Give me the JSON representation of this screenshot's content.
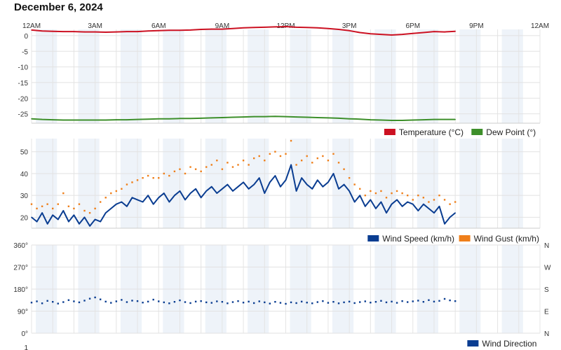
{
  "page": {
    "title": "December 6, 2024"
  },
  "time_axis": {
    "ticks": [
      "12AM",
      "3AM",
      "6AM",
      "9AM",
      "12PM",
      "3PM",
      "6PM",
      "9PM",
      "12AM"
    ],
    "range_hours": [
      0,
      24
    ]
  },
  "chart_data": [
    {
      "type": "line",
      "title": "",
      "ylim": [
        -28,
        2
      ],
      "y_ticks": [
        "0",
        "-5",
        "-10",
        "-15",
        "-20",
        "-25"
      ],
      "y_tick_values": [
        0,
        -5,
        -10,
        -15,
        -20,
        -25
      ],
      "series": [
        {
          "name": "Temperature (°C)",
          "color": "#cc1122",
          "style": "line",
          "x": [
            0,
            0.5,
            1,
            1.5,
            2,
            2.5,
            3,
            3.5,
            4,
            4.5,
            5,
            5.5,
            6,
            6.5,
            7,
            7.5,
            8,
            8.5,
            9,
            9.5,
            10,
            10.5,
            11,
            11.5,
            12,
            12.5,
            13,
            13.5,
            14,
            14.5,
            15,
            15.5,
            16,
            16.5,
            17,
            17.5,
            18,
            18.5,
            19,
            19.5,
            20
          ],
          "y": [
            1.8,
            1.5,
            1.4,
            1.3,
            1.3,
            1.2,
            1.2,
            1.1,
            1.2,
            1.3,
            1.3,
            1.5,
            1.6,
            1.7,
            1.7,
            1.8,
            2.0,
            2.1,
            2.1,
            2.3,
            2.5,
            2.6,
            2.7,
            2.8,
            2.9,
            2.7,
            2.6,
            2.5,
            2.3,
            2.0,
            1.6,
            1.0,
            0.6,
            0.4,
            0.2,
            0.4,
            0.7,
            1.0,
            1.3,
            1.2,
            1.4
          ]
        },
        {
          "name": "Dew Point (°)",
          "color": "#3d8f2a",
          "style": "line",
          "x": [
            0,
            0.5,
            1,
            1.5,
            2,
            2.5,
            3,
            3.5,
            4,
            4.5,
            5,
            5.5,
            6,
            6.5,
            7,
            7.5,
            8,
            8.5,
            9,
            9.5,
            10,
            10.5,
            11,
            11.5,
            12,
            12.5,
            13,
            13.5,
            14,
            14.5,
            15,
            15.5,
            16,
            16.5,
            17,
            17.5,
            18,
            18.5,
            19,
            19.5,
            20
          ],
          "y": [
            -26.6,
            -26.8,
            -26.9,
            -27.0,
            -27.0,
            -27.0,
            -27.0,
            -27.0,
            -26.9,
            -26.9,
            -26.8,
            -26.7,
            -26.6,
            -26.6,
            -26.5,
            -26.5,
            -26.4,
            -26.3,
            -26.2,
            -26.1,
            -26.0,
            -25.9,
            -25.9,
            -25.8,
            -25.9,
            -26.0,
            -26.1,
            -26.2,
            -26.3,
            -26.4,
            -26.6,
            -26.7,
            -26.9,
            -27.0,
            -27.1,
            -27.1,
            -27.0,
            -26.9,
            -26.8,
            -26.8,
            -26.8
          ]
        }
      ]
    },
    {
      "type": "line",
      "title": "",
      "ylim": [
        15,
        56
      ],
      "y_ticks": [
        "50",
        "40",
        "30",
        "20"
      ],
      "y_tick_values": [
        50,
        40,
        30,
        20
      ],
      "series": [
        {
          "name": "Wind Speed (km/h)",
          "color": "#0a3d91",
          "style": "line",
          "x": [
            0,
            0.25,
            0.5,
            0.75,
            1,
            1.25,
            1.5,
            1.75,
            2,
            2.25,
            2.5,
            2.75,
            3,
            3.25,
            3.5,
            3.75,
            4,
            4.25,
            4.5,
            4.75,
            5,
            5.25,
            5.5,
            5.75,
            6,
            6.25,
            6.5,
            6.75,
            7,
            7.25,
            7.5,
            7.75,
            8,
            8.25,
            8.5,
            8.75,
            9,
            9.25,
            9.5,
            9.75,
            10,
            10.25,
            10.5,
            10.75,
            11,
            11.25,
            11.5,
            11.75,
            12,
            12.25,
            12.5,
            12.75,
            13,
            13.25,
            13.5,
            13.75,
            14,
            14.25,
            14.5,
            14.75,
            15,
            15.25,
            15.5,
            15.75,
            16,
            16.25,
            16.5,
            16.75,
            17,
            17.25,
            17.5,
            17.75,
            18,
            18.25,
            18.5,
            18.75,
            19,
            19.25,
            19.5,
            19.75,
            20
          ],
          "y": [
            20,
            18,
            22,
            17,
            21,
            19,
            23,
            18,
            21,
            17,
            20,
            16,
            19,
            18,
            22,
            24,
            26,
            27,
            25,
            29,
            28,
            27,
            30,
            26,
            29,
            31,
            27,
            30,
            32,
            28,
            31,
            33,
            29,
            32,
            34,
            31,
            33,
            35,
            32,
            34,
            36,
            33,
            35,
            38,
            31,
            36,
            39,
            34,
            37,
            44,
            32,
            38,
            35,
            33,
            37,
            34,
            36,
            40,
            33,
            35,
            32,
            27,
            30,
            25,
            28,
            24,
            27,
            22,
            26,
            28,
            25,
            27,
            26,
            23,
            26,
            24,
            22,
            25,
            17,
            20,
            22
          ]
        },
        {
          "name": "Wind Gust (km/h)",
          "color": "#ef7f1a",
          "style": "dots",
          "x": [
            0,
            0.25,
            0.5,
            0.75,
            1,
            1.25,
            1.5,
            1.75,
            2,
            2.25,
            2.5,
            2.75,
            3,
            3.25,
            3.5,
            3.75,
            4,
            4.25,
            4.5,
            4.75,
            5,
            5.25,
            5.5,
            5.75,
            6,
            6.25,
            6.5,
            6.75,
            7,
            7.25,
            7.5,
            7.75,
            8,
            8.25,
            8.5,
            8.75,
            9,
            9.25,
            9.5,
            9.75,
            10,
            10.25,
            10.5,
            10.75,
            11,
            11.25,
            11.5,
            11.75,
            12,
            12.25,
            12.5,
            12.75,
            13,
            13.25,
            13.5,
            13.75,
            14,
            14.25,
            14.5,
            14.75,
            15,
            15.25,
            15.5,
            15.75,
            16,
            16.25,
            16.5,
            16.75,
            17,
            17.25,
            17.5,
            17.75,
            18,
            18.25,
            18.5,
            18.75,
            19,
            19.25,
            19.5,
            19.75,
            20
          ],
          "y": [
            26,
            24,
            25,
            26,
            24,
            26,
            31,
            25,
            24,
            26,
            23,
            22,
            24,
            27,
            29,
            31,
            32,
            33,
            35,
            36,
            37,
            38,
            39,
            38,
            38,
            40,
            39,
            41,
            42,
            40,
            43,
            42,
            41,
            43,
            44,
            46,
            42,
            45,
            43,
            44,
            46,
            44,
            47,
            48,
            46,
            49,
            50,
            48,
            49,
            55,
            44,
            46,
            48,
            45,
            47,
            48,
            46,
            49,
            45,
            42,
            38,
            35,
            33,
            30,
            32,
            31,
            32,
            29,
            31,
            32,
            31,
            30,
            28,
            30,
            29,
            27,
            28,
            30,
            28,
            26,
            27
          ]
        }
      ]
    },
    {
      "type": "scatter",
      "title": "",
      "ylim": [
        0,
        360
      ],
      "y_ticks": [
        "360°",
        "270°",
        "180°",
        "90°",
        "0°"
      ],
      "y_tick_values": [
        360,
        270,
        180,
        90,
        0
      ],
      "right_ticks": [
        "N",
        "W",
        "S",
        "E",
        "N"
      ],
      "series": [
        {
          "name": "Wind Direction",
          "color": "#0a3d91",
          "style": "dots",
          "x": [
            0,
            0.25,
            0.5,
            0.75,
            1,
            1.25,
            1.5,
            1.75,
            2,
            2.25,
            2.5,
            2.75,
            3,
            3.25,
            3.5,
            3.75,
            4,
            4.25,
            4.5,
            4.75,
            5,
            5.25,
            5.5,
            5.75,
            6,
            6.25,
            6.5,
            6.75,
            7,
            7.25,
            7.5,
            7.75,
            8,
            8.25,
            8.5,
            8.75,
            9,
            9.25,
            9.5,
            9.75,
            10,
            10.25,
            10.5,
            10.75,
            11,
            11.25,
            11.5,
            11.75,
            12,
            12.25,
            12.5,
            12.75,
            13,
            13.25,
            13.5,
            13.75,
            14,
            14.25,
            14.5,
            14.75,
            15,
            15.25,
            15.5,
            15.75,
            16,
            16.25,
            16.5,
            16.75,
            17,
            17.25,
            17.5,
            17.75,
            18,
            18.25,
            18.5,
            18.75,
            19,
            19.25,
            19.5,
            19.75,
            20
          ],
          "y": [
            125,
            130,
            122,
            132,
            128,
            121,
            127,
            135,
            130,
            126,
            133,
            141,
            146,
            138,
            129,
            124,
            130,
            136,
            127,
            133,
            131,
            125,
            129,
            137,
            130,
            126,
            122,
            128,
            134,
            127,
            123,
            129,
            131,
            126,
            124,
            130,
            128,
            122,
            127,
            131,
            125,
            129,
            123,
            130,
            126,
            121,
            128,
            124,
            120,
            126,
            123,
            129,
            125,
            122,
            127,
            131,
            124,
            128,
            122,
            126,
            129,
            123,
            127,
            130,
            125,
            128,
            132,
            126,
            129,
            124,
            131,
            127,
            130,
            133,
            128,
            135,
            129,
            132,
            140,
            134,
            131
          ]
        }
      ]
    }
  ],
  "panel4": {
    "y_tick_partial": "1"
  }
}
